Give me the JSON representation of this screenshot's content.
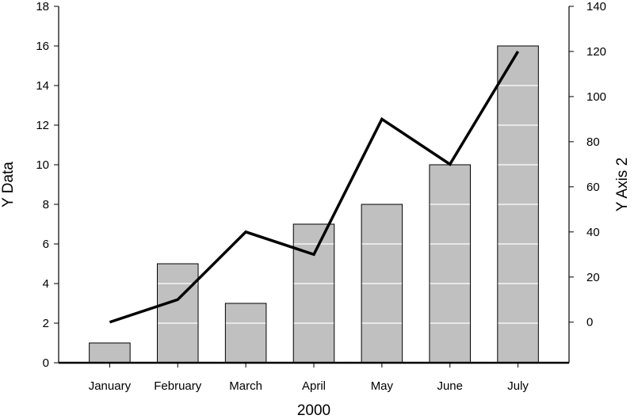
{
  "chart_data": {
    "type": "bar",
    "categories": [
      "January",
      "February",
      "March",
      "April",
      "May",
      "June",
      "July"
    ],
    "series": [
      {
        "type": "bar",
        "axis": "left",
        "values": [
          1,
          5,
          3,
          7,
          8,
          10,
          16
        ],
        "color": "#c0c0c0"
      },
      {
        "type": "line",
        "axis": "right",
        "values": [
          0,
          10,
          40,
          30,
          90,
          70,
          120
        ],
        "color": "#000000"
      }
    ],
    "xlabel": "2000",
    "ylabel": "Y Data",
    "y2label": "Y Axis 2",
    "ylim": [
      0,
      18
    ],
    "y2lim": [
      -18,
      140
    ],
    "yticks": [
      0,
      2,
      4,
      6,
      8,
      10,
      12,
      14,
      16,
      18
    ],
    "y2ticks": [
      0,
      20,
      40,
      60,
      80,
      100,
      120,
      140
    ],
    "grid": "white gridlines inside bars",
    "legend": "none"
  }
}
